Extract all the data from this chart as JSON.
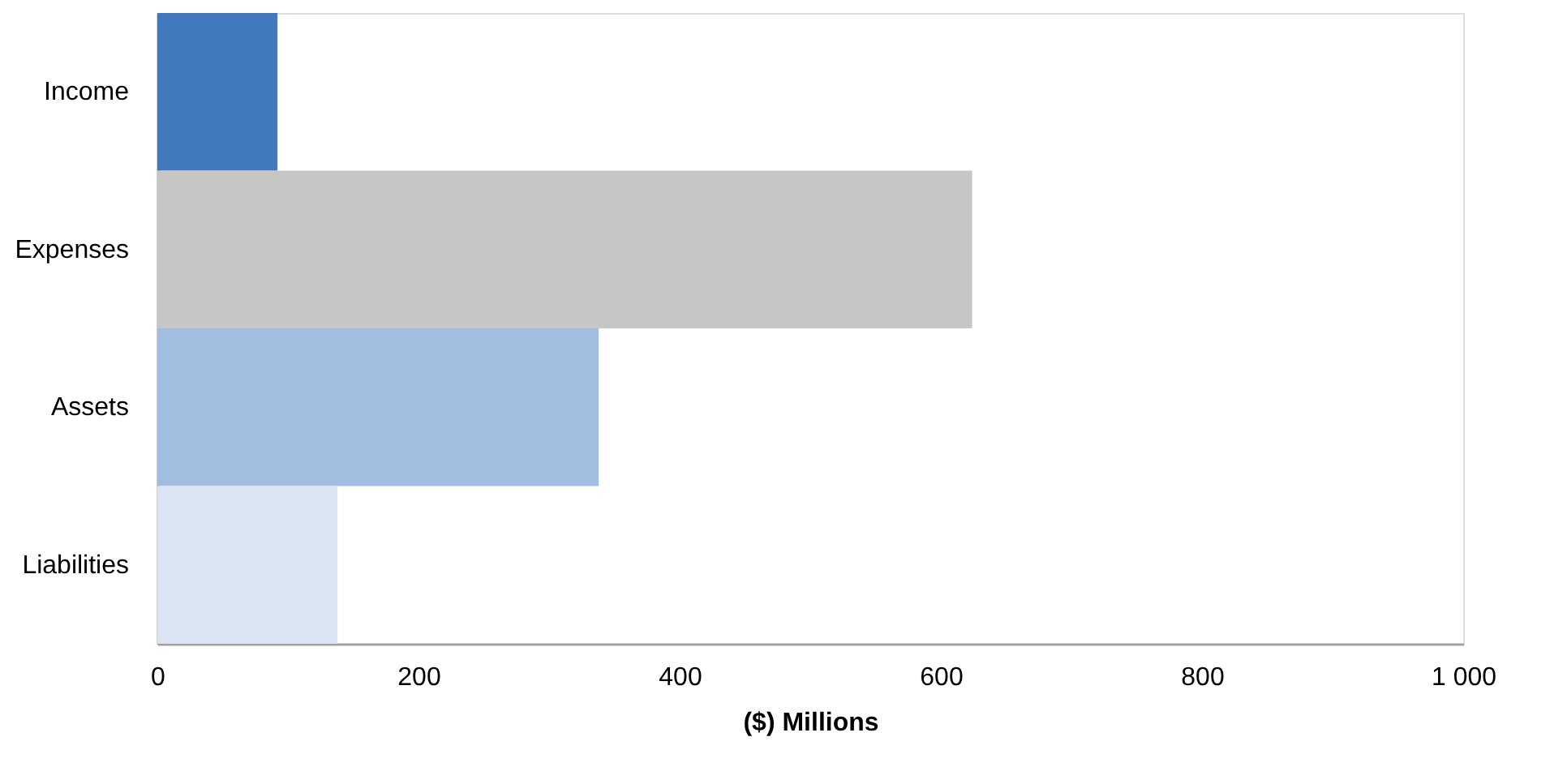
{
  "chart_data": {
    "type": "bar",
    "orientation": "horizontal",
    "xlabel": "($) Millions",
    "categories": [
      "Income",
      "Expenses",
      "Assets",
      "Liabilities"
    ],
    "values": [
      92,
      624,
      338,
      138
    ],
    "colors": [
      "#4279bd",
      "#c6c6c5",
      "#a1bddf",
      "#dbe4f3"
    ],
    "xlim": [
      0,
      1000
    ],
    "xticks": [
      0,
      200,
      400,
      600,
      800,
      {
        "value": 1000,
        "label": "1 000"
      }
    ],
    "grid": false,
    "legend": false
  }
}
